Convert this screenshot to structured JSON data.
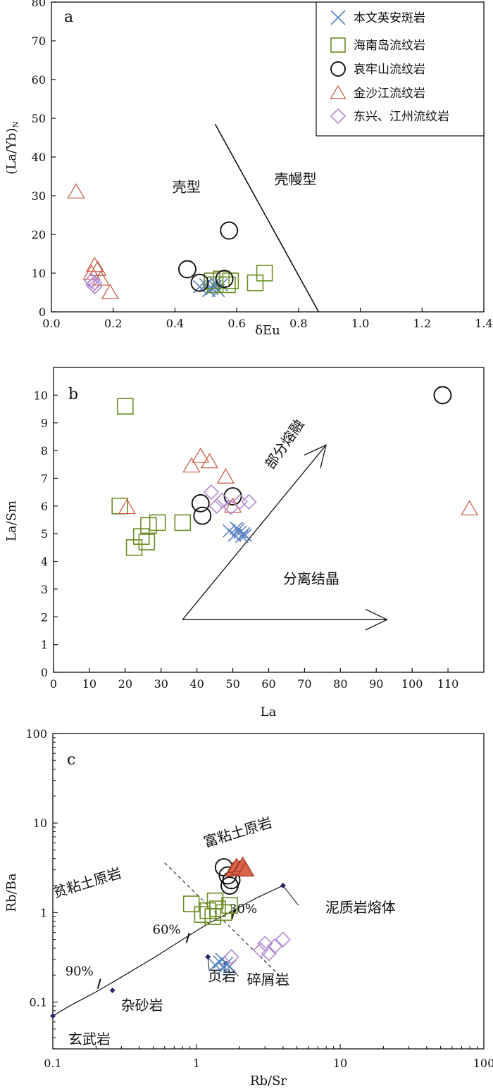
{
  "chart_data": [
    {
      "panel": "a",
      "type": "scatter",
      "xlabel": "δEu",
      "ylabel": "(La/Yb)",
      "ylabel_sub": "N",
      "xlim": [
        0.0,
        1.4
      ],
      "ylim": [
        0,
        80
      ],
      "xticks": [
        "0.0",
        "0.2",
        "0.4",
        "0.6",
        "0.8",
        "1.0",
        "1.2",
        "1.4"
      ],
      "yticks": [
        "0",
        "10",
        "20",
        "30",
        "40",
        "50",
        "60",
        "70",
        "80"
      ],
      "boundary_line": [
        [
          0.53,
          48.5
        ],
        [
          0.865,
          0
        ]
      ],
      "region_labels": [
        {
          "text": "壳型",
          "x": 0.46,
          "y": 32.5
        },
        {
          "text": "壳幔型",
          "x": 0.79,
          "y": 34.5
        }
      ],
      "legend": {
        "placement": "top-right",
        "entries": [
          {
            "label": "本文英安斑岩",
            "marker": "x",
            "color": "#5b84c4"
          },
          {
            "label": "海南岛流纹岩",
            "marker": "square",
            "color": "#6b8e23"
          },
          {
            "label": "哀牢山流纹岩",
            "marker": "circle",
            "color": "#111111"
          },
          {
            "label": "金沙江流纹岩",
            "marker": "triangle",
            "color": "#c8553d"
          },
          {
            "label": "东兴、江州流纹岩",
            "marker": "diamond",
            "color": "#b48ad0"
          }
        ]
      },
      "series": [
        {
          "name": "本文英安斑岩",
          "marker": "x",
          "points": [
            [
              0.48,
              6.5
            ],
            [
              0.5,
              7
            ],
            [
              0.51,
              5.5
            ],
            [
              0.52,
              6
            ],
            [
              0.53,
              6.5
            ],
            [
              0.54,
              5.5
            ],
            [
              0.55,
              7
            ],
            [
              0.53,
              7.5
            ]
          ]
        },
        {
          "name": "海南岛流纹岩",
          "marker": "square",
          "points": [
            [
              0.52,
              8
            ],
            [
              0.53,
              7
            ],
            [
              0.55,
              8.5
            ],
            [
              0.57,
              7
            ],
            [
              0.58,
              8
            ],
            [
              0.66,
              7.5
            ],
            [
              0.69,
              10
            ]
          ]
        },
        {
          "name": "哀牢山流纹岩",
          "marker": "circle",
          "points": [
            [
              0.44,
              11
            ],
            [
              0.48,
              7.5
            ],
            [
              0.56,
              8.5
            ],
            [
              0.575,
              21
            ]
          ]
        },
        {
          "name": "金沙江流纹岩",
          "marker": "triangle",
          "points": [
            [
              0.08,
              31
            ],
            [
              0.13,
              10
            ],
            [
              0.14,
              12
            ],
            [
              0.15,
              11
            ],
            [
              0.16,
              8.5
            ],
            [
              0.19,
              5
            ]
          ]
        },
        {
          "name": "东兴、江州流纹岩",
          "marker": "diamond",
          "points": [
            [
              0.13,
              8
            ],
            [
              0.135,
              7
            ],
            [
              0.14,
              6.5
            ],
            [
              0.14,
              7.5
            ]
          ]
        }
      ]
    },
    {
      "panel": "b",
      "type": "scatter",
      "xlabel": "La",
      "ylabel": "La/Sm",
      "xlim": [
        0,
        120
      ],
      "ylim": [
        0,
        11
      ],
      "xticks": [
        "0",
        "10",
        "20",
        "30",
        "40",
        "50",
        "60",
        "70",
        "80",
        "90",
        "100",
        "110"
      ],
      "yticks": [
        "0",
        "1",
        "2",
        "3",
        "4",
        "5",
        "6",
        "7",
        "8",
        "9",
        "10"
      ],
      "arrows": [
        {
          "label": "部分熔融",
          "from": [
            36,
            1.9
          ],
          "to": [
            76,
            8.2
          ],
          "label_at": [
            61,
            7.3
          ]
        },
        {
          "label": "分离结晶",
          "from": [
            36,
            1.9
          ],
          "to": [
            93,
            1.9
          ],
          "label_at": [
            64,
            3.2
          ]
        }
      ],
      "series": [
        {
          "name": "本文英安斑岩",
          "marker": "x",
          "points": [
            [
              49,
              5.1
            ],
            [
              50.5,
              4.95
            ],
            [
              51,
              5.2
            ],
            [
              52,
              5.05
            ],
            [
              52.5,
              4.9
            ],
            [
              53,
              5.0
            ],
            [
              53.5,
              4.95
            ],
            [
              51.5,
              5.15
            ]
          ]
        },
        {
          "name": "海南岛流纹岩",
          "marker": "square",
          "points": [
            [
              20,
              9.6
            ],
            [
              18.5,
              6.0
            ],
            [
              22.5,
              4.5
            ],
            [
              24.5,
              4.9
            ],
            [
              26,
              4.7
            ],
            [
              26.5,
              5.3
            ],
            [
              29,
              5.4
            ],
            [
              36,
              5.4
            ]
          ]
        },
        {
          "name": "哀牢山流纹岩",
          "marker": "circle",
          "points": [
            [
              41,
              6.1
            ],
            [
              41.5,
              5.65
            ],
            [
              50,
              6.35
            ],
            [
              108.5,
              10.0
            ]
          ]
        },
        {
          "name": "金沙江流纹岩",
          "marker": "triangle",
          "points": [
            [
              20.5,
              5.95
            ],
            [
              38.5,
              7.45
            ],
            [
              41,
              7.8
            ],
            [
              43.5,
              7.6
            ],
            [
              48,
              7.05
            ],
            [
              50,
              6.0
            ],
            [
              116,
              5.9
            ]
          ]
        },
        {
          "name": "东兴、江州流纹岩",
          "marker": "diamond",
          "points": [
            [
              44,
              6.5
            ],
            [
              45.5,
              6.0
            ],
            [
              47,
              6.2
            ],
            [
              49.5,
              5.95
            ],
            [
              52,
              6.15
            ],
            [
              54.5,
              6.15
            ]
          ]
        }
      ]
    },
    {
      "panel": "c",
      "type": "scatter",
      "xlabel": "Rb/Sr",
      "ylabel": "Rb/Ba",
      "xscale": "log",
      "yscale": "log",
      "xlim": [
        0.1,
        100
      ],
      "ylim": [
        0.03,
        100
      ],
      "xticks": [
        "0.1",
        "1",
        "10",
        "100"
      ],
      "yticks": [
        "0.1",
        "1",
        "10",
        "100"
      ],
      "mixing_curve": [
        [
          0.1,
          0.07
        ],
        [
          0.13,
          0.09
        ],
        [
          0.2,
          0.13
        ],
        [
          0.3,
          0.19
        ],
        [
          0.5,
          0.31
        ],
        [
          0.8,
          0.5
        ],
        [
          1.2,
          0.75
        ],
        [
          1.8,
          1.05
        ],
        [
          2.6,
          1.45
        ],
        [
          4.0,
          2.0
        ]
      ],
      "endmembers": [
        {
          "label": "玄武岩",
          "x": 0.1,
          "y": 0.07
        },
        {
          "label": "杂砂岩",
          "x": 0.26,
          "y": 0.135
        },
        {
          "label": "页岩",
          "x": 1.2,
          "y": 0.32
        },
        {
          "label": "碎屑岩",
          "x": 1.6,
          "y": 0.27
        },
        {
          "label": "泥质岩熔体",
          "x": 4.0,
          "y": 2.0
        }
      ],
      "curve_ticks": [
        {
          "label": "90%",
          "x": 0.21,
          "y": 0.16
        },
        {
          "label": "60%",
          "x": 0.87,
          "y": 0.52
        },
        {
          "label": "30%",
          "x": 1.8,
          "y": 0.95
        }
      ],
      "dashed_line": [
        [
          0.6,
          3.6
        ],
        [
          4.5,
          0.15
        ]
      ],
      "region_labels": [
        {
          "text": "贫粘土原岩",
          "x": 0.14,
          "y": 1.7
        },
        {
          "text": "富粘土原岩",
          "x": 1.6,
          "y": 6.3
        }
      ],
      "series": [
        {
          "name": "本文英安斑岩",
          "marker": "x",
          "points": [
            [
              1.35,
              0.26
            ],
            [
              1.45,
              0.28
            ],
            [
              1.55,
              0.24
            ],
            [
              1.62,
              0.27
            ],
            [
              1.7,
              0.25
            ],
            [
              1.5,
              0.3
            ]
          ]
        },
        {
          "name": "海南岛流纹岩",
          "marker": "square",
          "points": [
            [
              0.92,
              1.25
            ],
            [
              1.1,
              0.95
            ],
            [
              1.2,
              1.05
            ],
            [
              1.3,
              0.9
            ],
            [
              1.35,
              1.35
            ],
            [
              1.4,
              1.1
            ],
            [
              1.55,
              1.0
            ],
            [
              1.7,
              1.2
            ]
          ]
        },
        {
          "name": "哀牢山流纹岩",
          "marker": "circle",
          "points": [
            [
              1.55,
              3.2
            ],
            [
              1.65,
              2.6
            ],
            [
              1.7,
              2.0
            ],
            [
              1.75,
              2.3
            ]
          ]
        },
        {
          "name": "金沙江流纹岩",
          "marker": "triangle",
          "points": [
            [
              1.8,
              3.0
            ],
            [
              1.9,
              3.3
            ],
            [
              2.0,
              3.1
            ],
            [
              2.1,
              3.4
            ],
            [
              2.2,
              3.0
            ]
          ]
        },
        {
          "name": "东兴、江州流纹岩",
          "marker": "diamond",
          "points": [
            [
              1.75,
              0.32
            ],
            [
              2.8,
              0.38
            ],
            [
              3.0,
              0.45
            ],
            [
              3.2,
              0.35
            ],
            [
              3.5,
              0.42
            ],
            [
              4.0,
              0.5
            ]
          ]
        }
      ]
    }
  ],
  "panel_letters": [
    "a",
    "b",
    "c"
  ],
  "colors": {
    "x": "#5b84c4",
    "square": "#6b8e23",
    "circle": "#111111",
    "triangle": "#c8553d",
    "diamond": "#b48ad0",
    "axis": "#111111"
  }
}
